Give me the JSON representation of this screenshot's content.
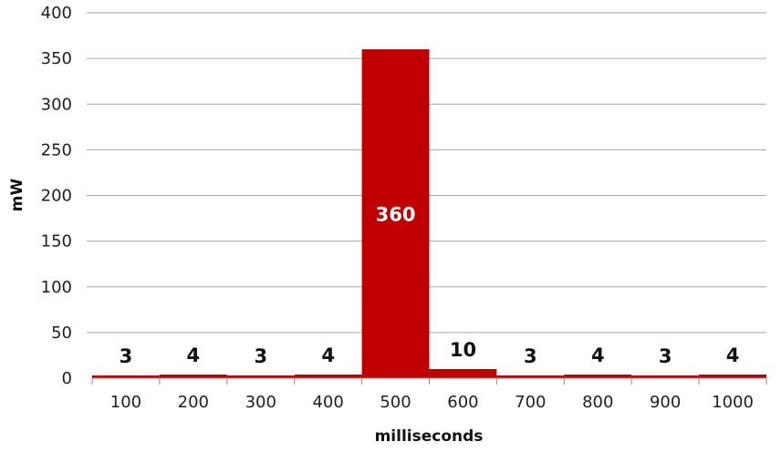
{
  "chart_data": {
    "type": "bar",
    "title": "",
    "xlabel": "milliseconds",
    "ylabel": "mW",
    "categories": [
      "100",
      "200",
      "300",
      "400",
      "500",
      "600",
      "700",
      "800",
      "900",
      "1000"
    ],
    "values": [
      3,
      4,
      3,
      4,
      360,
      10,
      3,
      4,
      3,
      4
    ],
    "ylim": [
      0,
      400
    ],
    "yticks": [
      0,
      50,
      100,
      150,
      200,
      250,
      300,
      350,
      400
    ],
    "grid": true,
    "legend": "none",
    "bar_color": "#C00000",
    "data_labels": true
  }
}
